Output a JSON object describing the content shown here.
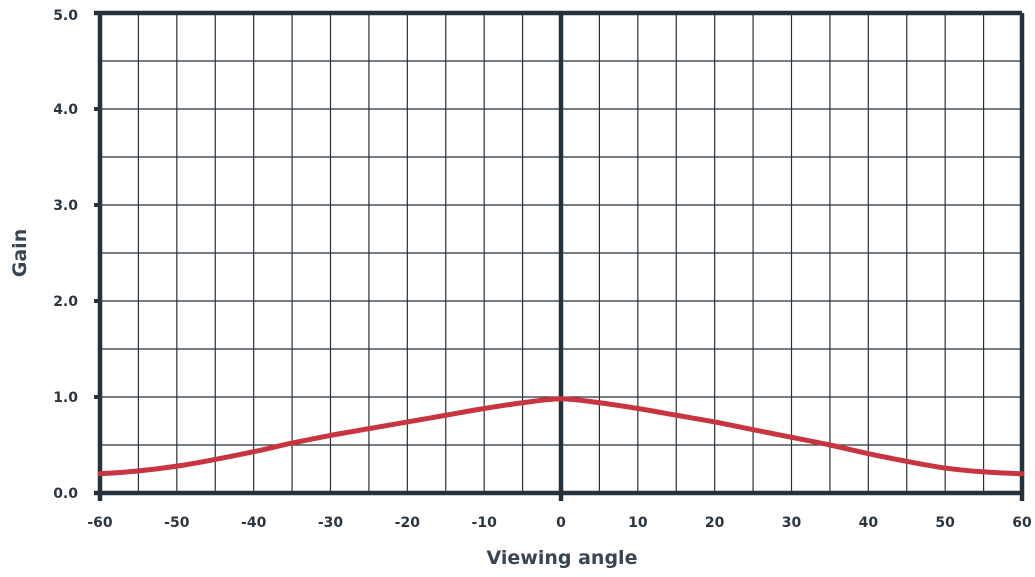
{
  "chart_data": {
    "type": "line",
    "xlabel": "Viewing angle",
    "ylabel": "Gain",
    "xlim": [
      -60,
      60
    ],
    "ylim": [
      0,
      5
    ],
    "x_ticks": [
      -60,
      -50,
      -40,
      -30,
      -20,
      -10,
      0,
      10,
      20,
      30,
      40,
      50,
      60
    ],
    "x_tick_labels": [
      "-60",
      "-50",
      "-40",
      "-30",
      "-20",
      "-10",
      "0",
      "10",
      "20",
      "30",
      "40",
      "50",
      "60"
    ],
    "y_ticks": [
      0,
      1,
      2,
      3,
      4,
      5
    ],
    "y_tick_labels": [
      "0.0",
      "1.0",
      "2.0",
      "3.0",
      "4.0",
      "5.0"
    ],
    "grid": true,
    "series": [
      {
        "color": "#c8343f",
        "x": [
          -60,
          -55,
          -50,
          -45,
          -40,
          -35,
          -30,
          -25,
          -20,
          -15,
          -10,
          -5,
          0,
          5,
          10,
          15,
          20,
          25,
          30,
          35,
          40,
          45,
          50,
          55,
          60
        ],
        "y": [
          0.2,
          0.23,
          0.28,
          0.35,
          0.43,
          0.52,
          0.6,
          0.67,
          0.74,
          0.81,
          0.88,
          0.94,
          0.98,
          0.94,
          0.88,
          0.81,
          0.74,
          0.66,
          0.58,
          0.5,
          0.41,
          0.33,
          0.26,
          0.22,
          0.2
        ]
      }
    ]
  }
}
